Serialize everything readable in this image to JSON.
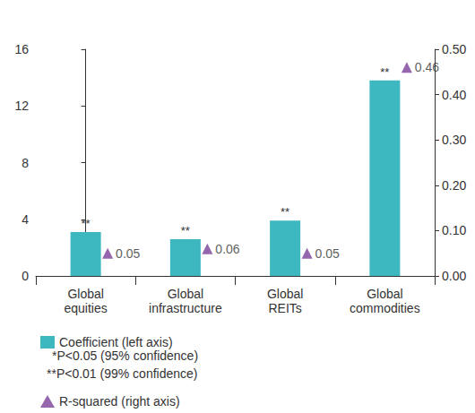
{
  "chart_data": {
    "type": "bar",
    "categories": [
      "Global equities",
      "Global infrastructure",
      "Global REITs",
      "Global commodities"
    ],
    "series": [
      {
        "name": "Coefficient (left axis)",
        "type": "bar",
        "color": "#3db8c0",
        "values": [
          3.1,
          2.6,
          3.9,
          13.8
        ],
        "significance": [
          "**",
          "**",
          "**",
          "**"
        ]
      },
      {
        "name": "R-squared (right axis)",
        "type": "scatter",
        "marker": "triangle",
        "color": "#7b3f98",
        "axis": "y2",
        "values": [
          0.05,
          0.06,
          0.05,
          0.46
        ],
        "data_labels": true
      }
    ],
    "ylim": [
      0,
      16
    ],
    "yticks": [
      0,
      4,
      8,
      12,
      16
    ],
    "y2lim": [
      0,
      0.5
    ],
    "y2ticks": [
      {
        "value": 0,
        "label": "0.00"
      },
      {
        "value": 0.1,
        "label": "0.10"
      },
      {
        "value": 0.2,
        "label": "0.20"
      },
      {
        "value": 0.3,
        "label": "0.30"
      },
      {
        "value": 0.4,
        "label": "0.40"
      },
      {
        "value": 0.5,
        "label": "0.50"
      }
    ],
    "annotations": [
      "*P<0.05 (95% confidence)",
      "**P<0.01 (99% confidence)"
    ],
    "legend": "bottom-left",
    "grid": false
  }
}
